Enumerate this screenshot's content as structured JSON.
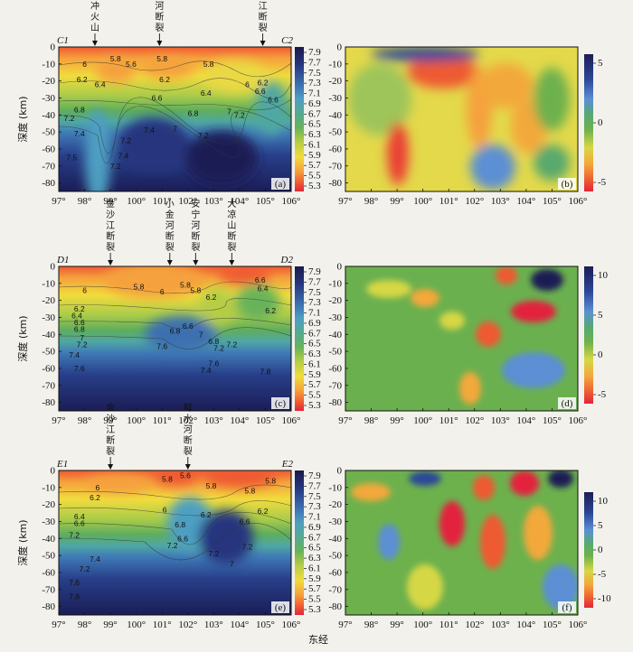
{
  "chart_data": [
    {
      "type": "heatmap",
      "panel_label": "(a)",
      "left_endpoint": "C1",
      "right_endpoint": "C2",
      "ylabel": "深度 (km)",
      "x_ticks": [
        "97°",
        "98°",
        "99°",
        "100°",
        "101°",
        "102°",
        "103°",
        "104°",
        "105°",
        "106°"
      ],
      "y_ticks": [
        "0",
        "-10",
        "-20",
        "-30",
        "-40",
        "-50",
        "-60",
        "-70",
        "-80"
      ],
      "xlim": [
        97,
        106
      ],
      "ylim": [
        0,
        -85
      ],
      "colorbar_ticks": [
        "7.9",
        "7.7",
        "7.5",
        "7.3",
        "7.1",
        "6.9",
        "6.7",
        "6.5",
        "6.3",
        "6.1",
        "5.9",
        "5.7",
        "5.5",
        "5.3"
      ],
      "annotations": [
        {
          "text": "腾冲火山",
          "lon": 98.4
        },
        {
          "text": "红河断裂",
          "lon": 100.9
        },
        {
          "text": "小江断裂",
          "lon": 104.9
        }
      ],
      "contour_labels": [
        {
          "text": "5.8",
          "lon": 99.2,
          "depth": -7
        },
        {
          "text": "5.6",
          "lon": 99.8,
          "depth": -10
        },
        {
          "text": "5.8",
          "lon": 101.0,
          "depth": -7
        },
        {
          "text": "5.8",
          "lon": 102.8,
          "depth": -10
        },
        {
          "text": "6",
          "lon": 98.0,
          "depth": -10
        },
        {
          "text": "6.2",
          "lon": 97.9,
          "depth": -19
        },
        {
          "text": "6.4",
          "lon": 98.6,
          "depth": -22
        },
        {
          "text": "6.2",
          "lon": 101.1,
          "depth": -19
        },
        {
          "text": "6.4",
          "lon": 102.7,
          "depth": -27
        },
        {
          "text": "6.6",
          "lon": 100.8,
          "depth": -30
        },
        {
          "text": "6.8",
          "lon": 97.8,
          "depth": -37
        },
        {
          "text": "7.2",
          "lon": 97.4,
          "depth": -42
        },
        {
          "text": "6.8",
          "lon": 102.2,
          "depth": -39
        },
        {
          "text": "7",
          "lon": 103.6,
          "depth": -38
        },
        {
          "text": "7.2",
          "lon": 104.0,
          "depth": -40
        },
        {
          "text": "7.4",
          "lon": 97.8,
          "depth": -51
        },
        {
          "text": "7.2",
          "lon": 99.6,
          "depth": -55
        },
        {
          "text": "7.2",
          "lon": 102.6,
          "depth": -52
        },
        {
          "text": "7.4",
          "lon": 99.5,
          "depth": -64
        },
        {
          "text": "7.5",
          "lon": 97.5,
          "depth": -65
        },
        {
          "text": "6.2",
          "lon": 104.9,
          "depth": -21
        },
        {
          "text": "6.6",
          "lon": 104.8,
          "depth": -26
        },
        {
          "text": "6",
          "lon": 104.3,
          "depth": -22
        },
        {
          "text": "6.6",
          "lon": 105.3,
          "depth": -31
        },
        {
          "text": "7.2",
          "lon": 99.2,
          "depth": -70
        },
        {
          "text": "7.4",
          "lon": 100.5,
          "depth": -49
        },
        {
          "text": "7",
          "lon": 101.5,
          "depth": -48
        }
      ]
    },
    {
      "type": "heatmap",
      "panel_label": "(b)",
      "x_ticks": [
        "97°",
        "98°",
        "99°",
        "100°",
        "101°",
        "102°",
        "103°",
        "104°",
        "105°",
        "106°"
      ],
      "y_ticks": [
        "0",
        "-10",
        "-20",
        "-30",
        "-40",
        "-50",
        "-60",
        "-70",
        "-80"
      ],
      "xlim": [
        97,
        106
      ],
      "ylim": [
        0,
        -85
      ],
      "colorbar_ticks": [
        "5",
        "0",
        "-5"
      ]
    },
    {
      "type": "heatmap",
      "panel_label": "(c)",
      "left_endpoint": "D1",
      "right_endpoint": "D2",
      "ylabel": "深度 (km)",
      "x_ticks": [
        "97°",
        "98°",
        "99°",
        "100°",
        "101°",
        "102°",
        "103°",
        "104°",
        "105°",
        "106°"
      ],
      "y_ticks": [
        "0",
        "-10",
        "-20",
        "-30",
        "-40",
        "-50",
        "-60",
        "-70",
        "-80"
      ],
      "xlim": [
        97,
        106
      ],
      "ylim": [
        0,
        -85
      ],
      "colorbar_ticks": [
        "7.9",
        "7.7",
        "7.5",
        "7.3",
        "7.1",
        "6.9",
        "6.7",
        "6.5",
        "6.3",
        "6.1",
        "5.9",
        "5.7",
        "5.5",
        "5.3"
      ],
      "annotations": [
        {
          "text": "金沙江断裂",
          "lon": 99.0
        },
        {
          "text": "小金河断裂",
          "lon": 101.3
        },
        {
          "text": "安宁河断裂",
          "lon": 102.3
        },
        {
          "text": "大凉山断裂",
          "lon": 103.7
        }
      ],
      "contour_labels": [
        {
          "text": "6",
          "lon": 98.0,
          "depth": -14
        },
        {
          "text": "6.2",
          "lon": 97.8,
          "depth": -25
        },
        {
          "text": "6.4",
          "lon": 97.7,
          "depth": -29
        },
        {
          "text": "6.6",
          "lon": 97.8,
          "depth": -33
        },
        {
          "text": "6.8",
          "lon": 97.8,
          "depth": -37
        },
        {
          "text": "7",
          "lon": 97.9,
          "depth": -42
        },
        {
          "text": "7.2",
          "lon": 97.9,
          "depth": -46
        },
        {
          "text": "7.4",
          "lon": 97.6,
          "depth": -52
        },
        {
          "text": "7.6",
          "lon": 97.8,
          "depth": -60
        },
        {
          "text": "5.8",
          "lon": 100.1,
          "depth": -12
        },
        {
          "text": "6",
          "lon": 101.0,
          "depth": -15
        },
        {
          "text": "5.8",
          "lon": 101.9,
          "depth": -11
        },
        {
          "text": "5.8",
          "lon": 102.3,
          "depth": -14
        },
        {
          "text": "6.2",
          "lon": 102.9,
          "depth": -18
        },
        {
          "text": "6.6",
          "lon": 104.8,
          "depth": -8
        },
        {
          "text": "6.4",
          "lon": 104.9,
          "depth": -13
        },
        {
          "text": "6.2",
          "lon": 105.2,
          "depth": -26
        },
        {
          "text": "6.6",
          "lon": 102.0,
          "depth": -35
        },
        {
          "text": "7",
          "lon": 102.5,
          "depth": -40
        },
        {
          "text": "7.2",
          "lon": 103.7,
          "depth": -46
        },
        {
          "text": "6.8",
          "lon": 103.0,
          "depth": -44
        },
        {
          "text": "7.6",
          "lon": 103.0,
          "depth": -57
        },
        {
          "text": "7.8",
          "lon": 105.0,
          "depth": -62
        },
        {
          "text": "7.6",
          "lon": 101.0,
          "depth": -47
        },
        {
          "text": "6.8",
          "lon": 101.5,
          "depth": -38
        },
        {
          "text": "7.4",
          "lon": 102.7,
          "depth": -61
        },
        {
          "text": "7.2",
          "lon": 103.2,
          "depth": -48
        }
      ]
    },
    {
      "type": "heatmap",
      "panel_label": "(d)",
      "x_ticks": [
        "97°",
        "98°",
        "99°",
        "100°",
        "101°",
        "102°",
        "103°",
        "104°",
        "105°",
        "106°"
      ],
      "y_ticks": [
        "0",
        "-10",
        "-20",
        "-30",
        "-40",
        "-50",
        "-60",
        "-70",
        "-80"
      ],
      "xlim": [
        97,
        106
      ],
      "ylim": [
        0,
        -85
      ],
      "colorbar_ticks": [
        "10",
        "5",
        "0",
        "-5"
      ]
    },
    {
      "type": "heatmap",
      "panel_label": "(e)",
      "left_endpoint": "E1",
      "right_endpoint": "E2",
      "ylabel": "深度 (km)",
      "x_ticks": [
        "97°",
        "98°",
        "99°",
        "100°",
        "101°",
        "102°",
        "103°",
        "104°",
        "105°",
        "106°"
      ],
      "y_ticks": [
        "0",
        "-10",
        "-20",
        "-30",
        "-40",
        "-50",
        "-60",
        "-70",
        "-80"
      ],
      "xlim": [
        97,
        106
      ],
      "ylim": [
        0,
        -85
      ],
      "colorbar_ticks": [
        "7.9",
        "7.7",
        "7.5",
        "7.3",
        "7.1",
        "6.9",
        "6.7",
        "6.5",
        "6.3",
        "6.1",
        "5.9",
        "5.7",
        "5.5",
        "5.3"
      ],
      "annotations": [
        {
          "text": "金沙江断裂",
          "lon": 99.0
        },
        {
          "text": "鲜水河断裂",
          "lon": 102.0
        }
      ],
      "contour_labels": [
        {
          "text": "6",
          "lon": 98.5,
          "depth": -10
        },
        {
          "text": "6.2",
          "lon": 98.4,
          "depth": -16
        },
        {
          "text": "6.4",
          "lon": 97.8,
          "depth": -27
        },
        {
          "text": "6.6",
          "lon": 97.8,
          "depth": -31
        },
        {
          "text": "7.2",
          "lon": 97.6,
          "depth": -38
        },
        {
          "text": "7.4",
          "lon": 98.4,
          "depth": -52
        },
        {
          "text": "7.2",
          "lon": 98.0,
          "depth": -58
        },
        {
          "text": "7.6",
          "lon": 97.6,
          "depth": -66
        },
        {
          "text": "7.8",
          "lon": 97.6,
          "depth": -74
        },
        {
          "text": "5.8",
          "lon": 101.2,
          "depth": -5
        },
        {
          "text": "5.6",
          "lon": 101.9,
          "depth": -3
        },
        {
          "text": "5.8",
          "lon": 102.9,
          "depth": -9
        },
        {
          "text": "6",
          "lon": 101.1,
          "depth": -23
        },
        {
          "text": "6.2",
          "lon": 102.7,
          "depth": -26
        },
        {
          "text": "6.6",
          "lon": 101.8,
          "depth": -40
        },
        {
          "text": "7.2",
          "lon": 101.4,
          "depth": -44
        },
        {
          "text": "7.2",
          "lon": 103.0,
          "depth": -49
        },
        {
          "text": "6.6",
          "lon": 104.2,
          "depth": -30
        },
        {
          "text": "6.2",
          "lon": 104.9,
          "depth": -24
        },
        {
          "text": "5.8",
          "lon": 104.4,
          "depth": -12
        },
        {
          "text": "5.8",
          "lon": 105.2,
          "depth": -6
        },
        {
          "text": "7",
          "lon": 103.7,
          "depth": -55
        },
        {
          "text": "6.8",
          "lon": 101.7,
          "depth": -32
        },
        {
          "text": "7.2",
          "lon": 104.3,
          "depth": -45
        }
      ]
    },
    {
      "type": "heatmap",
      "panel_label": "(f)",
      "x_ticks": [
        "97°",
        "98°",
        "99°",
        "100°",
        "101°",
        "102°",
        "103°",
        "104°",
        "105°",
        "106°"
      ],
      "y_ticks": [
        "0",
        "-10",
        "-20",
        "-30",
        "-40",
        "-50",
        "-60",
        "-70",
        "-80"
      ],
      "xlim": [
        97,
        106
      ],
      "ylim": [
        0,
        -85
      ],
      "colorbar_ticks": [
        "10",
        "5",
        "0",
        "-5",
        "-10"
      ]
    }
  ],
  "xlabel": "东经"
}
